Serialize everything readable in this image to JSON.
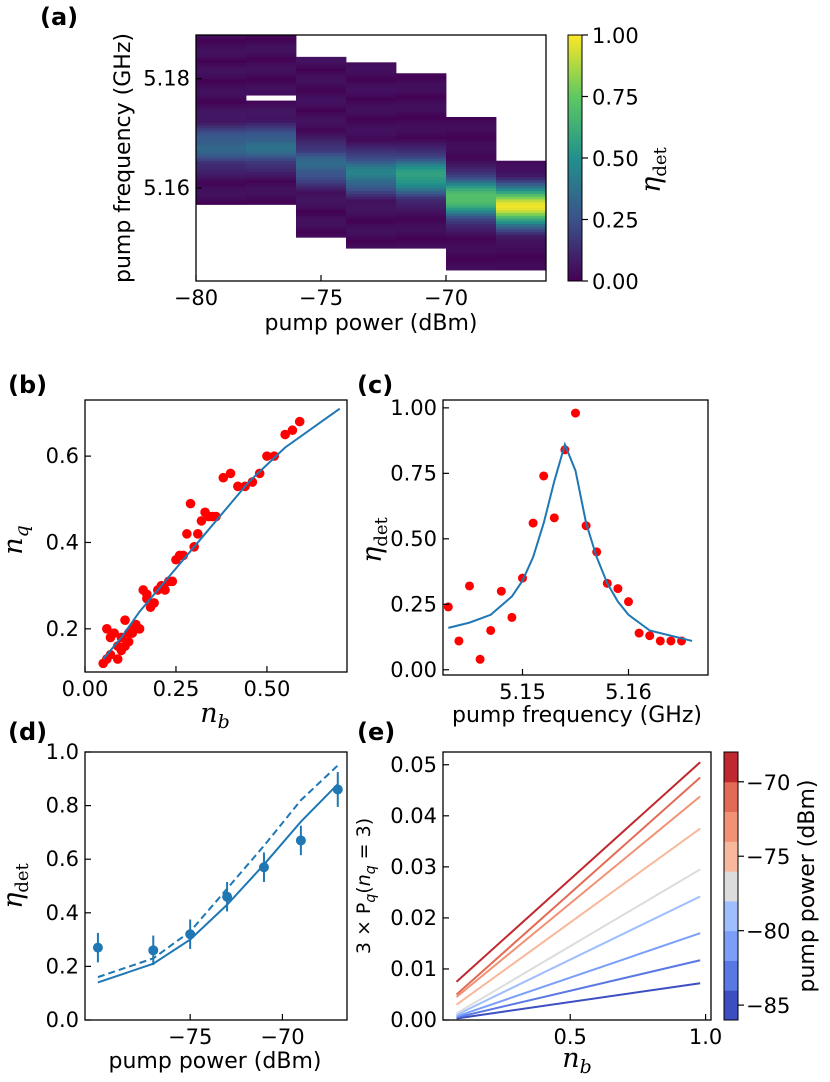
{
  "chart_data": [
    {
      "panel": "(a)",
      "type": "heatmap",
      "xlabel": "pump power (dBm)",
      "ylabel": "pump frequency (GHz)",
      "xlim": [
        -80,
        -66
      ],
      "ylim": [
        5.143,
        5.188
      ],
      "xticks": [
        "−80",
        "−75",
        "−70"
      ],
      "yticks": [
        "5.16",
        "5.18"
      ],
      "colorbar": {
        "label": "ηdet",
        "ticks": [
          "0.00",
          "0.25",
          "0.50",
          "0.75",
          "1.00"
        ],
        "range": [
          0,
          1
        ]
      },
      "columns": [
        {
          "power": -80,
          "fmin": 5.157,
          "fmax": 5.188,
          "peak_f": 5.1675,
          "peak": 0.3,
          "gap": null
        },
        {
          "power": -78,
          "fmin": 5.157,
          "fmax": 5.188,
          "peak_f": 5.1675,
          "peak": 0.33,
          "gap": [
            5.1758,
            5.1765
          ]
        },
        {
          "power": -76,
          "fmin": 5.151,
          "fmax": 5.184,
          "peak_f": 5.164,
          "peak": 0.3,
          "gap": null
        },
        {
          "power": -74,
          "fmin": 5.149,
          "fmax": 5.183,
          "peak_f": 5.1625,
          "peak": 0.4,
          "gap": null
        },
        {
          "power": -72,
          "fmin": 5.149,
          "fmax": 5.181,
          "peak_f": 5.162,
          "peak": 0.55,
          "gap": null
        },
        {
          "power": -70,
          "fmin": 5.145,
          "fmax": 5.173,
          "peak_f": 5.158,
          "peak": 0.7,
          "gap": null
        },
        {
          "power": -68,
          "fmin": 5.145,
          "fmax": 5.165,
          "peak_f": 5.1565,
          "peak": 0.95,
          "gap": null
        }
      ]
    },
    {
      "panel": "(b)",
      "type": "scatter",
      "xlabel": "nb",
      "ylabel": "nq",
      "xlim": [
        0,
        0.72
      ],
      "ylim": [
        0.1,
        0.73
      ],
      "xticks": [
        "0.00",
        "0.25",
        "0.50"
      ],
      "yticks": [
        "0.2",
        "0.4",
        "0.6"
      ],
      "points_x": [
        0.05,
        0.06,
        0.07,
        0.06,
        0.08,
        0.07,
        0.09,
        0.1,
        0.09,
        0.11,
        0.1,
        0.12,
        0.11,
        0.13,
        0.12,
        0.14,
        0.15,
        0.13,
        0.16,
        0.17,
        0.18,
        0.17,
        0.19,
        0.2,
        0.21,
        0.22,
        0.23,
        0.24,
        0.25,
        0.26,
        0.27,
        0.28,
        0.29,
        0.3,
        0.31,
        0.32,
        0.33,
        0.34,
        0.35,
        0.36,
        0.38,
        0.4,
        0.42,
        0.44,
        0.46,
        0.48,
        0.5,
        0.52,
        0.55,
        0.57,
        0.59
      ],
      "points_y": [
        0.12,
        0.13,
        0.14,
        0.2,
        0.19,
        0.18,
        0.13,
        0.15,
        0.16,
        0.16,
        0.18,
        0.17,
        0.22,
        0.2,
        0.19,
        0.21,
        0.2,
        0.19,
        0.29,
        0.28,
        0.25,
        0.27,
        0.26,
        0.29,
        0.3,
        0.29,
        0.31,
        0.31,
        0.36,
        0.37,
        0.37,
        0.42,
        0.49,
        0.39,
        0.42,
        0.45,
        0.47,
        0.46,
        0.46,
        0.46,
        0.55,
        0.56,
        0.53,
        0.53,
        0.54,
        0.56,
        0.6,
        0.6,
        0.65,
        0.66,
        0.68
      ],
      "fit_x": [
        0.05,
        0.1,
        0.15,
        0.2,
        0.25,
        0.3,
        0.35,
        0.4,
        0.45,
        0.5,
        0.55,
        0.6,
        0.65,
        0.7
      ],
      "fit_y": [
        0.13,
        0.18,
        0.24,
        0.29,
        0.34,
        0.39,
        0.44,
        0.49,
        0.54,
        0.58,
        0.62,
        0.65,
        0.68,
        0.71
      ]
    },
    {
      "panel": "(c)",
      "type": "scatter",
      "xlabel": "pump frequency (GHz)",
      "ylabel": "ηdet",
      "xlim": [
        5.1425,
        5.1675
      ],
      "ylim": [
        -0.02,
        1.03
      ],
      "xticks": [
        "5.15",
        "5.16"
      ],
      "yticks": [
        "0.00",
        "0.25",
        "0.50",
        "0.75",
        "1.00"
      ],
      "points_x": [
        5.143,
        5.144,
        5.145,
        5.146,
        5.147,
        5.148,
        5.149,
        5.15,
        5.151,
        5.152,
        5.153,
        5.154,
        5.155,
        5.156,
        5.157,
        5.158,
        5.159,
        5.16,
        5.161,
        5.162,
        5.163,
        5.164,
        5.165
      ],
      "points_y": [
        0.24,
        0.11,
        0.32,
        0.04,
        0.15,
        0.3,
        0.2,
        0.35,
        0.56,
        0.74,
        0.58,
        0.84,
        0.98,
        0.55,
        0.45,
        0.33,
        0.31,
        0.26,
        0.14,
        0.13,
        0.11,
        0.11,
        0.11
      ],
      "fit_x": [
        5.143,
        5.145,
        5.147,
        5.149,
        5.15,
        5.151,
        5.152,
        5.153,
        5.154,
        5.155,
        5.156,
        5.157,
        5.158,
        5.159,
        5.16,
        5.161,
        5.162,
        5.163,
        5.164,
        5.165,
        5.166
      ],
      "fit_y": [
        0.16,
        0.18,
        0.21,
        0.28,
        0.34,
        0.43,
        0.56,
        0.72,
        0.86,
        0.76,
        0.56,
        0.43,
        0.33,
        0.26,
        0.21,
        0.18,
        0.15,
        0.14,
        0.13,
        0.12,
        0.11
      ]
    },
    {
      "panel": "(d)",
      "type": "line",
      "xlabel": "pump power (dBm)",
      "ylabel": "ηdet",
      "xlim": [
        -80.7,
        -66.5
      ],
      "ylim": [
        0,
        1.0
      ],
      "xticks": [
        "−75",
        "−70"
      ],
      "yticks": [
        "0.0",
        "0.2",
        "0.4",
        "0.6",
        "0.8",
        "1.0"
      ],
      "points_x": [
        -80,
        -77,
        -75,
        -73,
        -71,
        -69,
        -67
      ],
      "points_y": [
        0.27,
        0.26,
        0.32,
        0.46,
        0.57,
        0.67,
        0.86
      ],
      "errors": [
        0.055,
        0.055,
        0.055,
        0.055,
        0.055,
        0.055,
        0.065
      ],
      "solid_x": [
        -80,
        -77,
        -75,
        -73,
        -71,
        -69,
        -67
      ],
      "solid_y": [
        0.14,
        0.21,
        0.3,
        0.43,
        0.58,
        0.74,
        0.88
      ],
      "dashed_x": [
        -80,
        -77,
        -75,
        -73,
        -71,
        -69,
        -67
      ],
      "dashed_y": [
        0.16,
        0.23,
        0.33,
        0.49,
        0.65,
        0.82,
        0.95
      ]
    },
    {
      "panel": "(e)",
      "type": "line",
      "xlabel": "nb",
      "ylabel": "3 × Pq(nq = 3)",
      "xlim": [
        0.03,
        1.02
      ],
      "ylim": [
        0,
        0.0525
      ],
      "xticks": [
        "0.5",
        "1.0"
      ],
      "yticks": [
        "0.00",
        "0.01",
        "0.02",
        "0.03",
        "0.04",
        "0.05"
      ],
      "x_range": [
        0.08,
        0.98
      ],
      "series": [
        {
          "power": -85,
          "y": [
            0.0003,
            0.0072
          ],
          "color": "#3c4ec2"
        },
        {
          "power": -83,
          "y": [
            0.0005,
            0.0117
          ],
          "color": "#5a78e4"
        },
        {
          "power": -81,
          "y": [
            0.0007,
            0.017
          ],
          "color": "#7b9ff9"
        },
        {
          "power": -79,
          "y": [
            0.001,
            0.0242
          ],
          "color": "#9ebeff"
        },
        {
          "power": -77,
          "y": [
            0.0013,
            0.0295
          ],
          "color": "#dddcdc"
        },
        {
          "power": -75,
          "y": [
            0.003,
            0.0375
          ],
          "color": "#f7b89c"
        },
        {
          "power": -73,
          "y": [
            0.0045,
            0.0438
          ],
          "color": "#f29274"
        },
        {
          "power": -71,
          "y": [
            0.005,
            0.0475
          ],
          "color": "#e36b55"
        },
        {
          "power": -69,
          "y": [
            0.0075,
            0.0505
          ],
          "color": "#c0282f"
        }
      ],
      "colorbar": {
        "label": "pump power (dBm)",
        "ticks": [
          "−85",
          "−80",
          "−75",
          "−70"
        ],
        "range": [
          -86,
          -68
        ]
      }
    }
  ]
}
